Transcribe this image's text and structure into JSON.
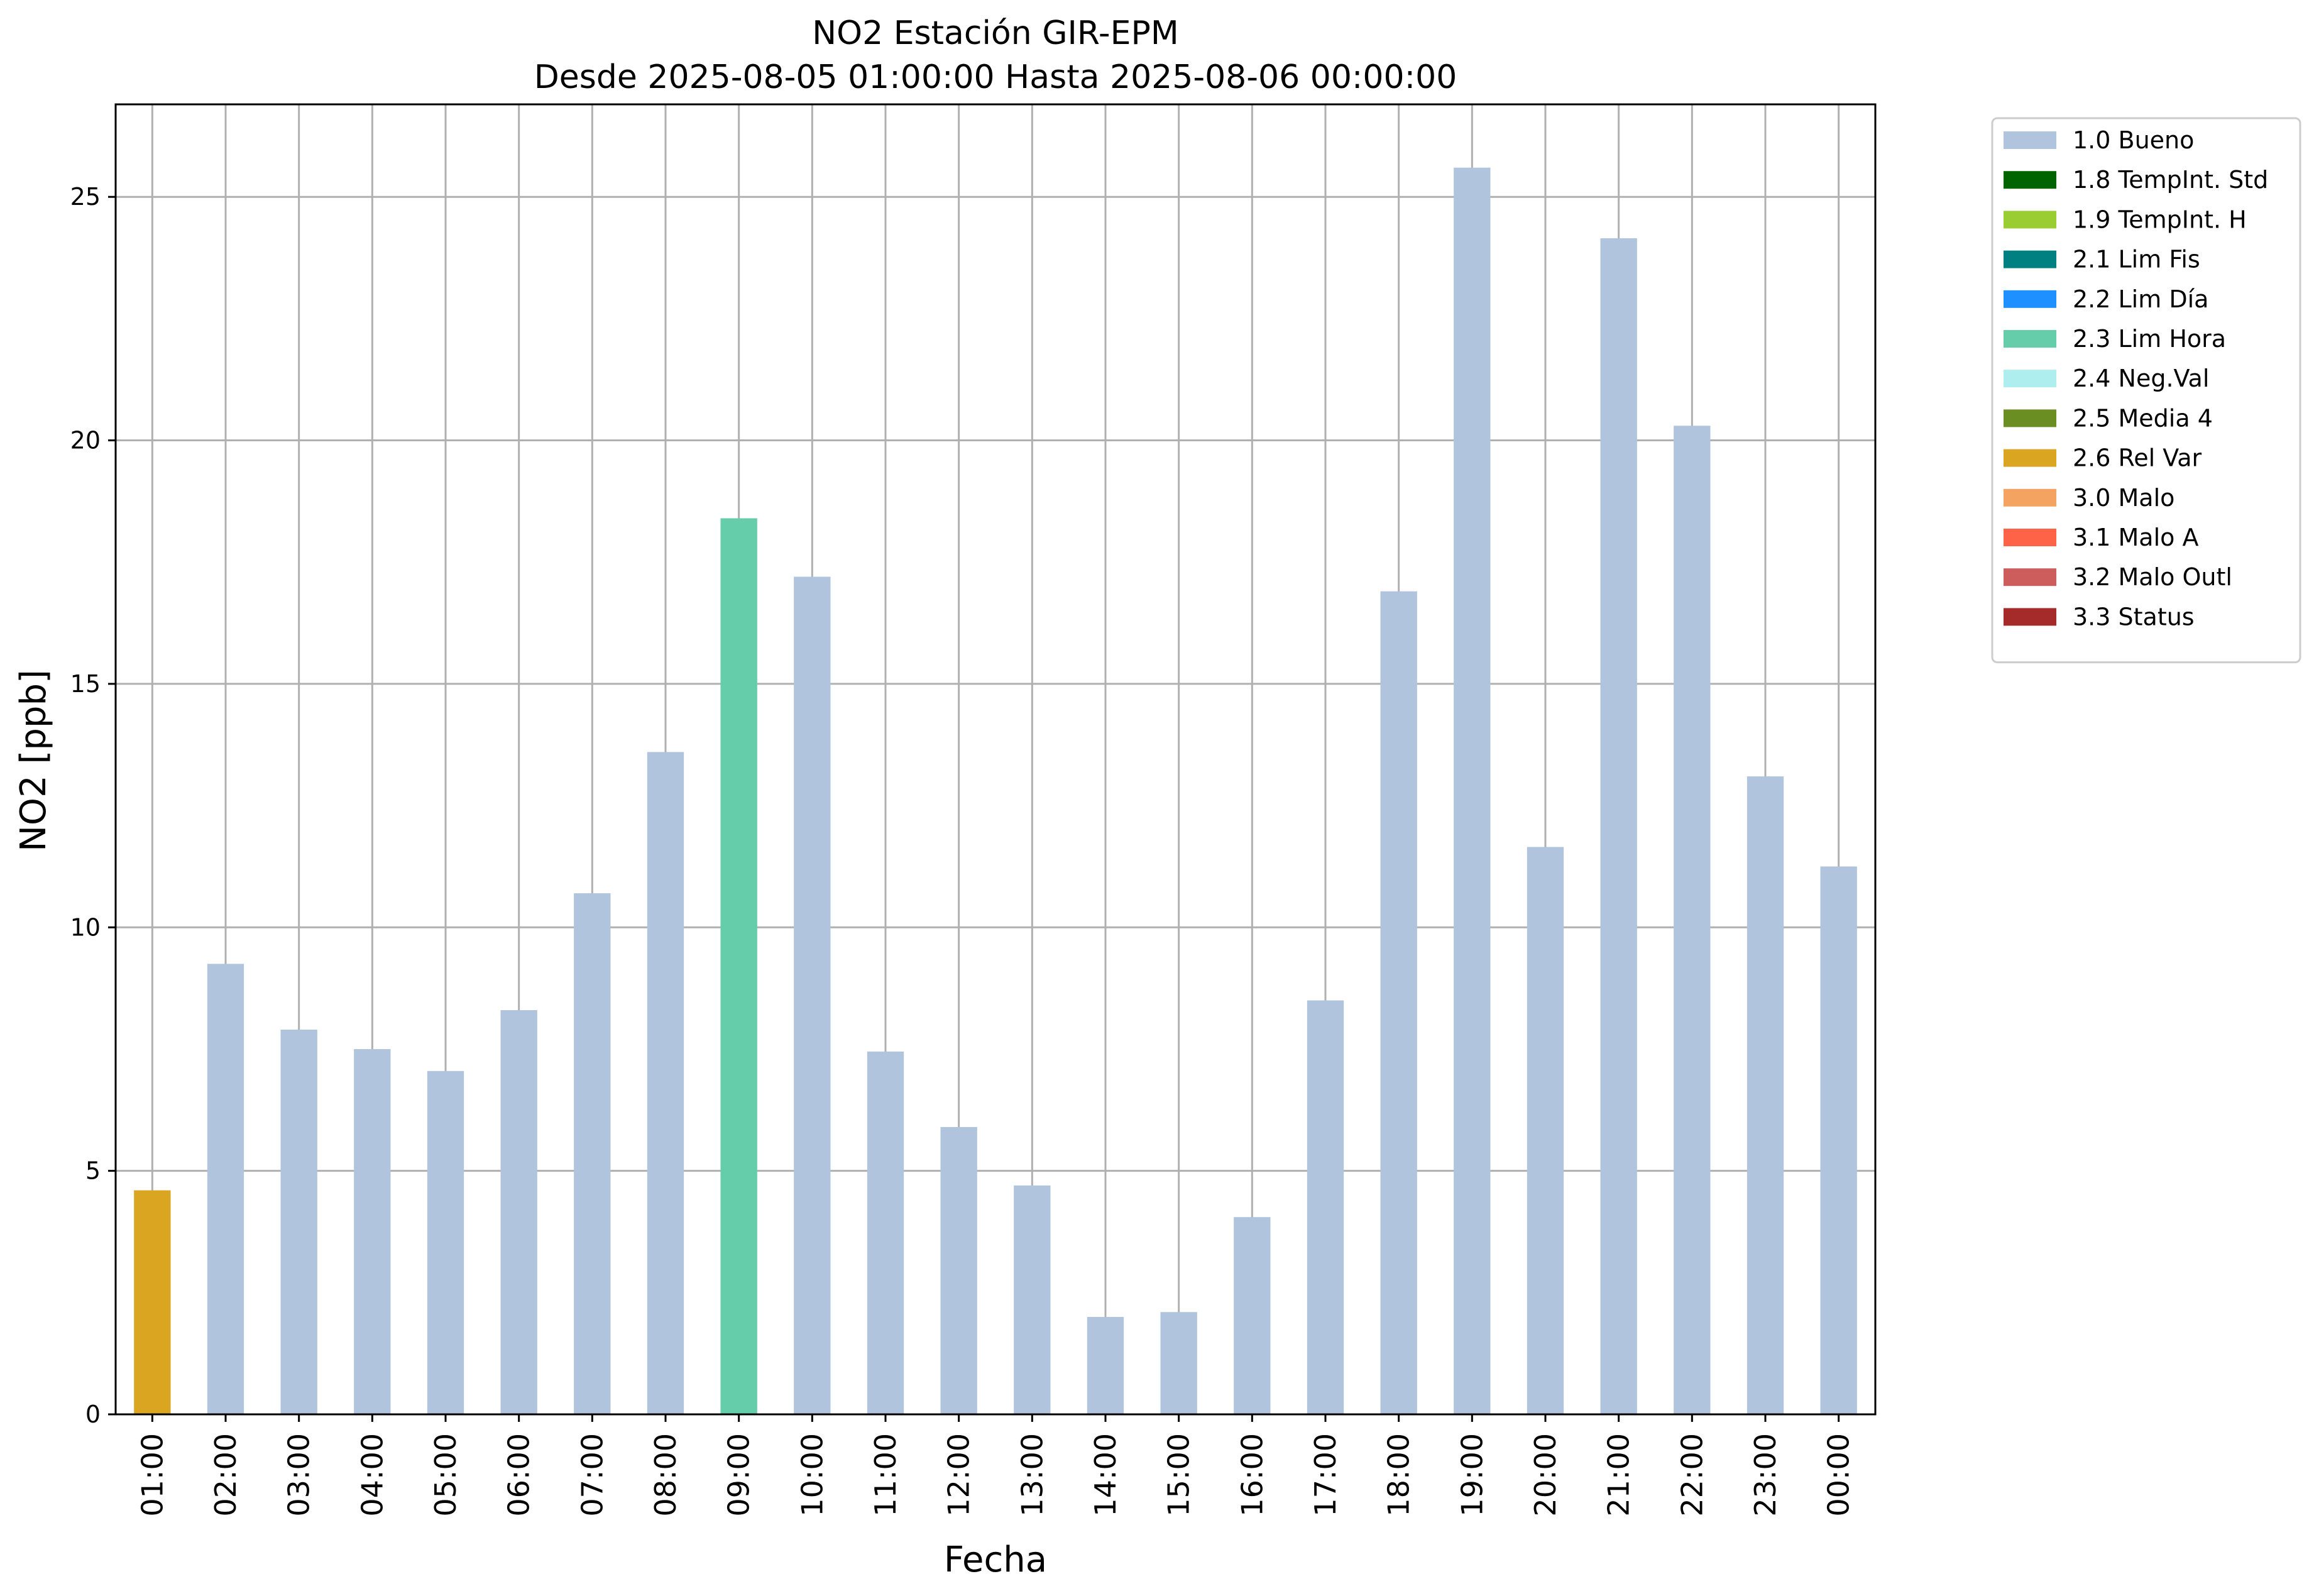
{
  "chart_data": {
    "type": "bar",
    "title": "NO2 Estación GIR-EPM",
    "subtitle": "Desde 2025-08-05 01:00:00 Hasta 2025-08-06 00:00:00",
    "xlabel": "Fecha",
    "ylabel": "NO2 [ppb]",
    "ylim": [
      0,
      26.9
    ],
    "yticks": [
      0,
      5,
      10,
      15,
      20,
      25
    ],
    "grid": true,
    "legend_position": "outside-top-right",
    "categories": [
      "01:00",
      "02:00",
      "03:00",
      "04:00",
      "05:00",
      "06:00",
      "07:00",
      "08:00",
      "09:00",
      "10:00",
      "11:00",
      "12:00",
      "13:00",
      "14:00",
      "15:00",
      "16:00",
      "17:00",
      "18:00",
      "19:00",
      "20:00",
      "21:00",
      "22:00",
      "23:00",
      "00:00"
    ],
    "values": [
      4.6,
      9.25,
      7.9,
      7.5,
      7.05,
      8.3,
      10.7,
      13.6,
      18.4,
      17.2,
      7.45,
      5.9,
      4.7,
      2.0,
      2.1,
      4.05,
      8.5,
      16.9,
      25.6,
      11.65,
      24.15,
      20.3,
      13.1,
      11.25
    ],
    "flags": [
      "2.6 Rel Var",
      "1.0 Bueno",
      "1.0 Bueno",
      "1.0 Bueno",
      "1.0 Bueno",
      "1.0 Bueno",
      "1.0 Bueno",
      "1.0 Bueno",
      "2.3 Lim Hora",
      "1.0 Bueno",
      "1.0 Bueno",
      "1.0 Bueno",
      "1.0 Bueno",
      "1.0 Bueno",
      "1.0 Bueno",
      "1.0 Bueno",
      "1.0 Bueno",
      "1.0 Bueno",
      "1.0 Bueno",
      "1.0 Bueno",
      "1.0 Bueno",
      "1.0 Bueno",
      "1.0 Bueno",
      "1.0 Bueno"
    ],
    "legend": [
      {
        "label": "1.0 Bueno",
        "color": "#b0c4de"
      },
      {
        "label": "1.8 TempInt. Std",
        "color": "#006400"
      },
      {
        "label": "1.9 TempInt. H",
        "color": "#9acd32"
      },
      {
        "label": "2.1 Lim Fis",
        "color": "#008080"
      },
      {
        "label": "2.2 Lim Día",
        "color": "#1e90ff"
      },
      {
        "label": "2.3 Lim Hora",
        "color": "#66cdaa"
      },
      {
        "label": "2.4 Neg.Val",
        "color": "#afeeee"
      },
      {
        "label": "2.5 Media 4",
        "color": "#6b8e23"
      },
      {
        "label": "2.6 Rel Var",
        "color": "#daa520"
      },
      {
        "label": "3.0 Malo",
        "color": "#f4a460"
      },
      {
        "label": "3.1 Malo A",
        "color": "#ff6347"
      },
      {
        "label": "3.2 Malo Outl",
        "color": "#cd5c5c"
      },
      {
        "label": "3.3 Status",
        "color": "#a52a2a"
      }
    ]
  }
}
